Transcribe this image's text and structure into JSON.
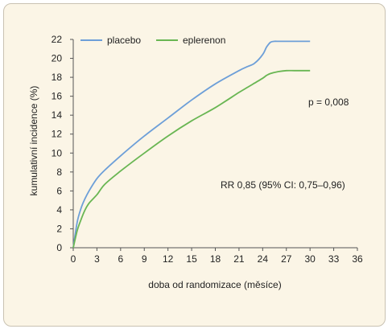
{
  "chart_data": {
    "type": "line",
    "xlabel": "doba od randomizace (měsíce)",
    "ylabel": "kumulativní incidence (%)",
    "xlim": [
      0,
      36
    ],
    "ylim": [
      0,
      22
    ],
    "xticks": [
      0,
      3,
      6,
      9,
      12,
      15,
      18,
      21,
      24,
      27,
      30,
      33,
      36
    ],
    "yticks": [
      0,
      2,
      4,
      6,
      8,
      10,
      12,
      14,
      16,
      18,
      20,
      22
    ],
    "grid": false,
    "legend_position": "top-left",
    "series": [
      {
        "name": "placebo",
        "color": "#6d9fd8",
        "x": [
          0,
          0.5,
          1,
          1.5,
          2,
          3,
          4,
          6,
          9,
          12,
          15,
          18,
          21,
          22,
          23,
          24,
          24.5,
          25,
          25.5,
          26,
          27,
          28,
          29,
          30
        ],
        "y": [
          0,
          2.7,
          4.2,
          5.2,
          6.0,
          7.3,
          8.2,
          9.7,
          11.8,
          13.7,
          15.6,
          17.3,
          18.7,
          19.1,
          19.5,
          20.4,
          21.2,
          21.7,
          21.8,
          21.8,
          21.8,
          21.8,
          21.8,
          21.8
        ]
      },
      {
        "name": "eplerenon",
        "color": "#69b653",
        "x": [
          0,
          0.5,
          1,
          1.5,
          2,
          3,
          4,
          6,
          9,
          12,
          15,
          18,
          21,
          22,
          23,
          24,
          24.5,
          25,
          26,
          27,
          28,
          29,
          30
        ],
        "y": [
          0,
          1.8,
          3.0,
          4.0,
          4.7,
          5.6,
          6.7,
          8.1,
          10.0,
          11.8,
          13.4,
          14.8,
          16.4,
          16.9,
          17.4,
          17.9,
          18.2,
          18.4,
          18.6,
          18.7,
          18.7,
          18.7,
          18.7
        ]
      }
    ],
    "annotations": [
      {
        "text": "p = 0,008",
        "x": 24.8,
        "y": 15.4
      },
      {
        "text": "RR 0,85 (95% CI: 0,75–0,96)",
        "x": 15.5,
        "y": 6.2
      }
    ]
  }
}
